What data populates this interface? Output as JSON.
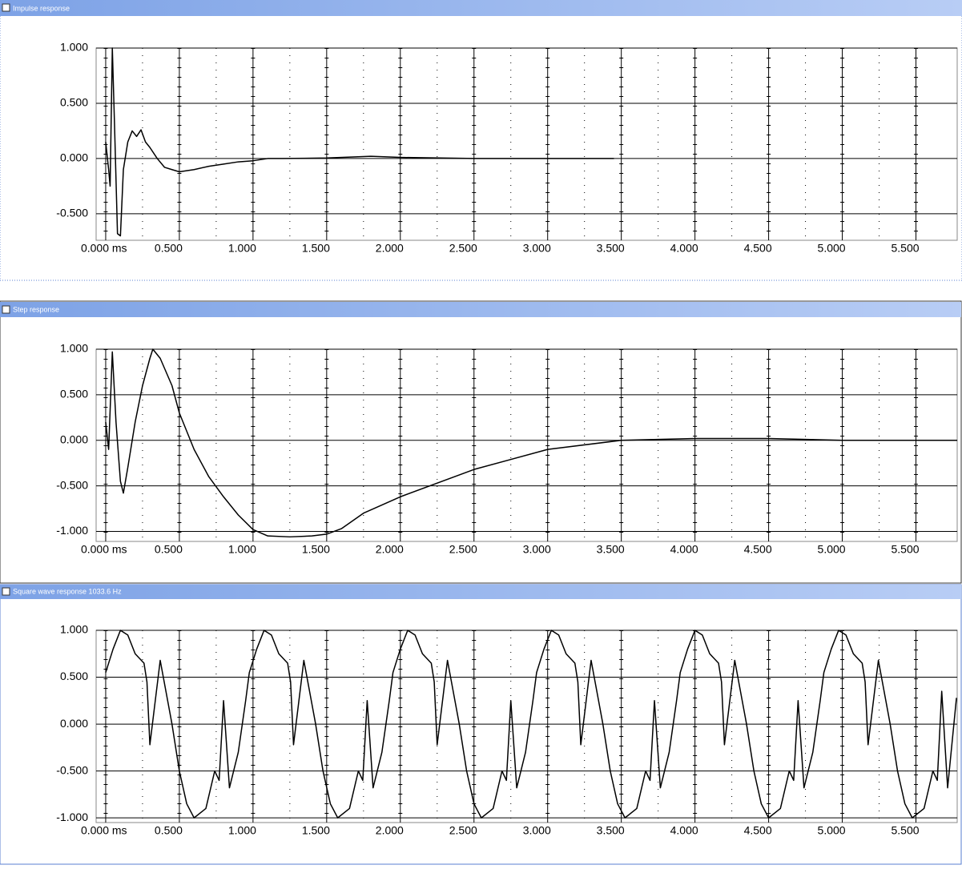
{
  "chart_data": [
    {
      "type": "line",
      "title": "Impulse response",
      "grid": true,
      "color": "#000000",
      "xlim": [
        -0.065,
        5.78
      ],
      "ylim": [
        -0.74,
        1.0
      ],
      "xticks": [
        {
          "value": 0,
          "label": "0.000 ms"
        },
        {
          "value": 0.5,
          "label": "0.500"
        },
        {
          "value": 1,
          "label": "1.000"
        },
        {
          "value": 1.5,
          "label": "1.500"
        },
        {
          "value": 2,
          "label": "2.000"
        },
        {
          "value": 2.5,
          "label": "2.500"
        },
        {
          "value": 3,
          "label": "3.000"
        },
        {
          "value": 3.5,
          "label": "3.500"
        },
        {
          "value": 4,
          "label": "4.000"
        },
        {
          "value": 4.5,
          "label": "4.500"
        },
        {
          "value": 5,
          "label": "5.000"
        },
        {
          "value": 5.5,
          "label": "5.500"
        }
      ],
      "yticks": [
        {
          "value": 1,
          "label": "1.000"
        },
        {
          "value": 0.5,
          "label": "0.500"
        },
        {
          "value": 0,
          "label": "0.000"
        },
        {
          "value": -0.5,
          "label": "-0.500"
        }
      ],
      "x": [
        0,
        0.02,
        0.03,
        0.045,
        0.06,
        0.08,
        0.1,
        0.12,
        0.15,
        0.18,
        0.21,
        0.24,
        0.27,
        0.3,
        0.35,
        0.4,
        0.45,
        0.5,
        0.6,
        0.7,
        0.8,
        0.9,
        1.0,
        1.1,
        1.2,
        1.5,
        1.8,
        2.0,
        2.5,
        3.0,
        3.45
      ],
      "values": [
        0.15,
        -0.1,
        -0.25,
        1.0,
        0.3,
        -0.68,
        -0.7,
        -0.1,
        0.15,
        0.25,
        0.2,
        0.26,
        0.15,
        0.1,
        0.0,
        -0.08,
        -0.1,
        -0.12,
        -0.1,
        -0.07,
        -0.05,
        -0.03,
        -0.02,
        0.0,
        0.0,
        0.005,
        0.02,
        0.01,
        0.0,
        0.0,
        0.0
      ]
    },
    {
      "type": "line",
      "title": "Step response",
      "grid": true,
      "color": "#000000",
      "xlim": [
        -0.065,
        5.78
      ],
      "ylim": [
        -1.11,
        1.0
      ],
      "xticks": [
        {
          "value": 0,
          "label": "0.000 ms"
        },
        {
          "value": 0.5,
          "label": "0.500"
        },
        {
          "value": 1,
          "label": "1.000"
        },
        {
          "value": 1.5,
          "label": "1.500"
        },
        {
          "value": 2,
          "label": "2.000"
        },
        {
          "value": 2.5,
          "label": "2.500"
        },
        {
          "value": 3,
          "label": "3.000"
        },
        {
          "value": 3.5,
          "label": "3.500"
        },
        {
          "value": 4,
          "label": "4.000"
        },
        {
          "value": 4.5,
          "label": "4.500"
        },
        {
          "value": 5,
          "label": "5.000"
        },
        {
          "value": 5.5,
          "label": "5.500"
        }
      ],
      "yticks": [
        {
          "value": 1,
          "label": "1.000"
        },
        {
          "value": 0.5,
          "label": "0.500"
        },
        {
          "value": 0,
          "label": "0.000"
        },
        {
          "value": -0.5,
          "label": "-0.500"
        },
        {
          "value": -1,
          "label": "-1.000"
        }
      ],
      "x": [
        0,
        0.02,
        0.045,
        0.07,
        0.1,
        0.12,
        0.15,
        0.2,
        0.25,
        0.3,
        0.32,
        0.37,
        0.45,
        0.5,
        0.6,
        0.7,
        0.8,
        0.9,
        1.0,
        1.1,
        1.25,
        1.4,
        1.5,
        1.6,
        1.75,
        2.0,
        2.5,
        3.0,
        3.5,
        4.0,
        4.5,
        5.0,
        5.78
      ],
      "values": [
        0.2,
        -0.1,
        0.97,
        0.2,
        -0.45,
        -0.58,
        -0.3,
        0.2,
        0.6,
        0.9,
        1.0,
        0.9,
        0.6,
        0.3,
        -0.1,
        -0.4,
        -0.62,
        -0.82,
        -0.98,
        -1.05,
        -1.06,
        -1.05,
        -1.03,
        -0.97,
        -0.8,
        -0.62,
        -0.32,
        -0.1,
        0.0,
        0.02,
        0.02,
        0.0,
        0.0
      ]
    },
    {
      "type": "line",
      "title": "Square wave response 1033.6 Hz",
      "grid": true,
      "color": "#000000",
      "xlim": [
        -0.065,
        5.78
      ],
      "ylim": [
        -1.05,
        1.0
      ],
      "xticks": [
        {
          "value": 0,
          "label": "0.000 ms"
        },
        {
          "value": 0.5,
          "label": "0.500"
        },
        {
          "value": 1,
          "label": "1.000"
        },
        {
          "value": 1.5,
          "label": "1.500"
        },
        {
          "value": 2,
          "label": "2.000"
        },
        {
          "value": 2.5,
          "label": "2.500"
        },
        {
          "value": 3,
          "label": "3.000"
        },
        {
          "value": 3.5,
          "label": "3.500"
        },
        {
          "value": 4,
          "label": "4.000"
        },
        {
          "value": 4.5,
          "label": "4.500"
        },
        {
          "value": 5,
          "label": "5.000"
        },
        {
          "value": 5.5,
          "label": "5.500"
        }
      ],
      "yticks": [
        {
          "value": 1,
          "label": "1.000"
        },
        {
          "value": 0.5,
          "label": "0.500"
        },
        {
          "value": 0,
          "label": "0.000"
        },
        {
          "value": -0.5,
          "label": "-0.500"
        },
        {
          "value": -1,
          "label": "-1.000"
        }
      ],
      "x": [
        0,
        0.05,
        0.1,
        0.15,
        0.2,
        0.26,
        0.28,
        0.3,
        0.37,
        0.45,
        0.5,
        0.55,
        0.6,
        0.68,
        0.74,
        0.77,
        0.8,
        0.84,
        0.9,
        0.95,
        0.975,
        1.025,
        1.075,
        1.125,
        1.175,
        1.235,
        1.255,
        1.275,
        1.345,
        1.425,
        1.475,
        1.525,
        1.575,
        1.655,
        1.715,
        1.745,
        1.775,
        1.815,
        1.875,
        1.925,
        1.95,
        2.0,
        2.05,
        2.1,
        2.15,
        2.21,
        2.23,
        2.25,
        2.32,
        2.4,
        2.45,
        2.5,
        2.55,
        2.63,
        2.69,
        2.72,
        2.75,
        2.79,
        2.85,
        2.9,
        2.925,
        2.975,
        3.025,
        3.075,
        3.125,
        3.185,
        3.205,
        3.225,
        3.295,
        3.375,
        3.425,
        3.475,
        3.525,
        3.605,
        3.665,
        3.695,
        3.725,
        3.765,
        3.825,
        3.875,
        3.9,
        3.95,
        4.0,
        4.05,
        4.1,
        4.16,
        4.18,
        4.2,
        4.27,
        4.35,
        4.4,
        4.45,
        4.5,
        4.58,
        4.64,
        4.67,
        4.7,
        4.74,
        4.8,
        4.85,
        4.875,
        4.925,
        4.975,
        5.025,
        5.075,
        5.135,
        5.155,
        5.175,
        5.245,
        5.325,
        5.375,
        5.425,
        5.475,
        5.555,
        5.615,
        5.645,
        5.675,
        5.715,
        5.775
      ],
      "values": [
        0.55,
        0.8,
        1.0,
        0.95,
        0.75,
        0.65,
        0.45,
        -0.22,
        0.68,
        0.0,
        -0.5,
        -0.85,
        -1.0,
        -0.9,
        -0.5,
        -0.6,
        0.25,
        -0.68,
        -0.3,
        0.25,
        0.55,
        0.8,
        1.0,
        0.95,
        0.75,
        0.65,
        0.45,
        -0.22,
        0.68,
        0.0,
        -0.5,
        -0.85,
        -1.0,
        -0.9,
        -0.5,
        -0.6,
        0.25,
        -0.68,
        -0.3,
        0.25,
        0.55,
        0.8,
        1.0,
        0.95,
        0.75,
        0.65,
        0.45,
        -0.22,
        0.68,
        0.0,
        -0.5,
        -0.85,
        -1.0,
        -0.9,
        -0.5,
        -0.6,
        0.25,
        -0.68,
        -0.3,
        0.25,
        0.55,
        0.8,
        1.0,
        0.95,
        0.75,
        0.65,
        0.45,
        -0.22,
        0.68,
        0.0,
        -0.5,
        -0.85,
        -1.0,
        -0.9,
        -0.5,
        -0.6,
        0.25,
        -0.68,
        -0.3,
        0.25,
        0.55,
        0.8,
        1.0,
        0.95,
        0.75,
        0.65,
        0.45,
        -0.22,
        0.68,
        0.0,
        -0.5,
        -0.85,
        -1.0,
        -0.9,
        -0.5,
        -0.6,
        0.25,
        -0.68,
        -0.3,
        0.25,
        0.55,
        0.8,
        1.0,
        0.95,
        0.75,
        0.65,
        0.45,
        -0.22,
        0.68,
        0.0,
        -0.5,
        -0.85,
        -1.0,
        -0.9,
        -0.5,
        -0.6,
        0.35,
        -0.68,
        0.28
      ]
    }
  ]
}
